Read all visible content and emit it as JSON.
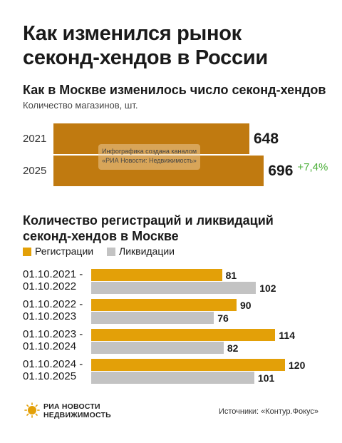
{
  "header": {
    "title_line1": "Как изменился рынок",
    "title_line2": "секонд-хендов в России"
  },
  "chart_data": [
    {
      "type": "bar",
      "title": "Как в Москве изменилось число секонд-хендов",
      "subtitle": "Количество магазинов, шт.",
      "categories": [
        "2021",
        "2025"
      ],
      "values": [
        648,
        696
      ],
      "value_labels": [
        "648",
        "696"
      ],
      "annotation": "+7,4%",
      "colors": {
        "bar": "#c07a10",
        "annotation": "#4caf3a"
      }
    },
    {
      "type": "bar",
      "title": "Количество регистраций и ликвидаций секонд-хендов в Москве",
      "categories": [
        [
          "01.10.2021 -",
          "01.10.2022"
        ],
        [
          "01.10.2022 -",
          "01.10.2023"
        ],
        [
          "01.10.2023 -",
          "01.10.2024"
        ],
        [
          "01.10.2024 -",
          "01.10.2025"
        ]
      ],
      "series": [
        {
          "name": "Регистрации",
          "values": [
            81,
            90,
            114,
            120
          ],
          "color": "#e3a008"
        },
        {
          "name": "Ликвидации",
          "values": [
            102,
            76,
            82,
            101
          ],
          "color": "#c3c3c3"
        }
      ],
      "legend": "top-left"
    }
  ],
  "watermark": {
    "line1": "Инфографика создана каналом",
    "line2": "«РИА Новости: Недвижимость»"
  },
  "footer": {
    "logo_line1": "РИА НОВОСТИ",
    "logo_line2": "НЕДВИЖИМОСТЬ",
    "logo_icon": "ria-sun-icon",
    "source": "Источники: «Контур.Фокус»"
  }
}
